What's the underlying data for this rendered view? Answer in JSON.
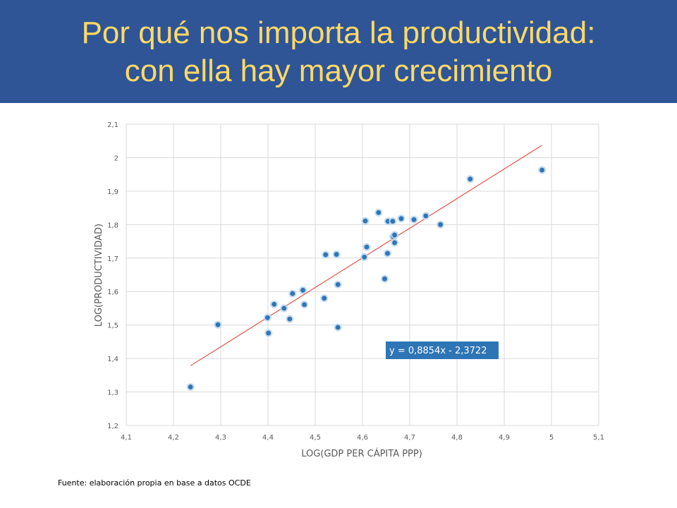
{
  "slide": {
    "title_line1": "Por qué nos importa la productividad:",
    "title_line2": "con ella hay mayor crecimiento",
    "source": "Fuente: elaboración propia en base a datos OCDE"
  },
  "colors": {
    "header_bg": "#2f5597",
    "title_text": "#ffd966",
    "marker": "#2e75b6",
    "trendline": "#e03c31",
    "equation_bg": "#2e75b6"
  },
  "chart_data": {
    "type": "scatter",
    "xlabel": "LOG(GDP PER CÁPITA PPP)",
    "ylabel": "LOG(PRODUCTIVIDAD)",
    "xlim": [
      4.1,
      5.1
    ],
    "ylim": [
      1.2,
      2.1
    ],
    "x_ticks": [
      "4,1",
      "4,2",
      "4,3",
      "4,4",
      "4,5",
      "4,6",
      "4,7",
      "4,8",
      "4,9",
      "5",
      "5,1"
    ],
    "y_ticks": [
      "1,2",
      "1,3",
      "1,4",
      "1,5",
      "1,6",
      "1,7",
      "1,8",
      "1,9",
      "2",
      "2,1"
    ],
    "grid": true,
    "trendline": {
      "slope": 0.8854,
      "intercept": -2.3722,
      "x_range": [
        4.236,
        4.98
      ],
      "equation": "y = 0,8854x - 2,3722"
    },
    "points": [
      {
        "x": 4.236,
        "y": 1.315
      },
      {
        "x": 4.294,
        "y": 1.501
      },
      {
        "x": 4.399,
        "y": 1.522
      },
      {
        "x": 4.401,
        "y": 1.476
      },
      {
        "x": 4.413,
        "y": 1.562
      },
      {
        "x": 4.434,
        "y": 1.55
      },
      {
        "x": 4.446,
        "y": 1.518
      },
      {
        "x": 4.452,
        "y": 1.594
      },
      {
        "x": 4.474,
        "y": 1.604
      },
      {
        "x": 4.477,
        "y": 1.561
      },
      {
        "x": 4.519,
        "y": 1.58
      },
      {
        "x": 4.522,
        "y": 1.71
      },
      {
        "x": 4.545,
        "y": 1.711
      },
      {
        "x": 4.548,
        "y": 1.621
      },
      {
        "x": 4.548,
        "y": 1.493
      },
      {
        "x": 4.604,
        "y": 1.703
      },
      {
        "x": 4.606,
        "y": 1.811
      },
      {
        "x": 4.609,
        "y": 1.733
      },
      {
        "x": 4.634,
        "y": 1.836
      },
      {
        "x": 4.647,
        "y": 1.638
      },
      {
        "x": 4.653,
        "y": 1.714
      },
      {
        "x": 4.654,
        "y": 1.81
      },
      {
        "x": 4.664,
        "y": 1.81
      },
      {
        "x": 4.665,
        "y": 1.764
      },
      {
        "x": 4.668,
        "y": 1.769
      },
      {
        "x": 4.668,
        "y": 1.746
      },
      {
        "x": 4.682,
        "y": 1.818
      },
      {
        "x": 4.709,
        "y": 1.815
      },
      {
        "x": 4.734,
        "y": 1.826
      },
      {
        "x": 4.765,
        "y": 1.8
      },
      {
        "x": 4.828,
        "y": 1.936
      },
      {
        "x": 4.98,
        "y": 1.963
      }
    ]
  }
}
